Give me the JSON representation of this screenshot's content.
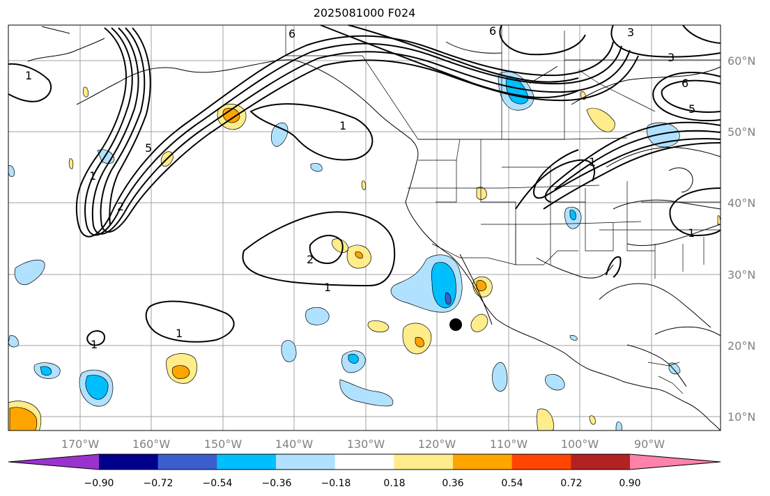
{
  "title": "2025081000 F024",
  "map": {
    "lon_labels": [
      "170°W",
      "160°W",
      "150°W",
      "140°W",
      "130°W",
      "120°W",
      "110°W",
      "100°W",
      "90°W"
    ],
    "lat_labels": [
      "60°N",
      "50°N",
      "40°N",
      "30°N",
      "20°N",
      "10°N"
    ],
    "contour_labels": [
      "6",
      "6",
      "3",
      "3",
      "6",
      "5",
      "1",
      "1",
      "2",
      "1",
      "1",
      "1",
      "5",
      "1",
      "1",
      "2",
      "1"
    ],
    "marker": "black-dot"
  },
  "colorbar": {
    "colors": [
      "#9a32cd",
      "#00008b",
      "#3a5fcd",
      "#00bfff",
      "#b0e2ff",
      "#ffffff",
      "#ffec8b",
      "#ffa500",
      "#ff4500",
      "#b22222",
      "#ff82ab"
    ],
    "labels": [
      "−0.90",
      "−0.72",
      "−0.54",
      "−0.36",
      "−0.18",
      "0.18",
      "0.36",
      "0.54",
      "0.72",
      "0.90"
    ]
  }
}
